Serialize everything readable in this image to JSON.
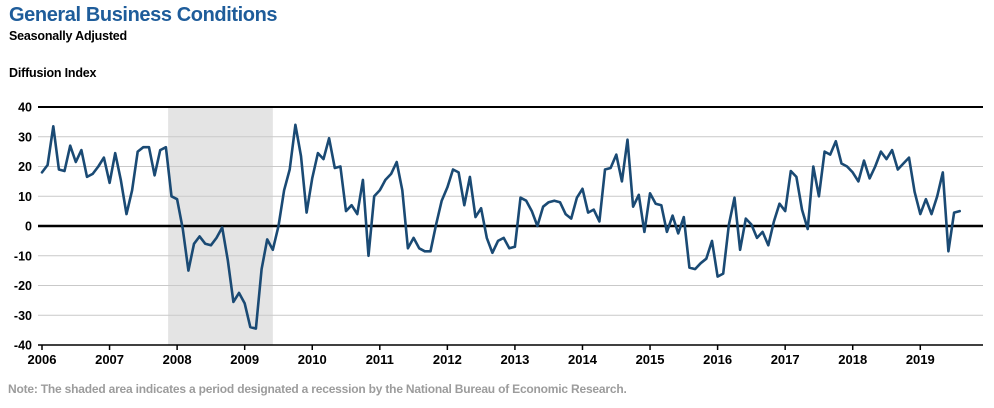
{
  "header": {
    "title": "General Business Conditions",
    "subtitle": "Seasonally Adjusted",
    "axis_title": "Diffusion Index"
  },
  "note": "Note: The shaded area indicates a period designated a recession by the National Bureau of Economic Research.",
  "colors": {
    "title_blue": "#1e5c9a",
    "line_navy": "#1a4a74",
    "recession_band_gray": "#e4e4e4",
    "gridline_gray": "#c9c9c9",
    "axis_black": "#000000",
    "note_gray": "#9c9c9c"
  },
  "chart_data": {
    "type": "line",
    "title": "General Business Conditions",
    "subtitle": "Seasonally Adjusted",
    "ylabel": "Diffusion Index",
    "xlabel": "",
    "ylim": [
      -40,
      40
    ],
    "y_ticks": [
      40,
      30,
      20,
      10,
      0,
      -10,
      -20,
      -30,
      -40
    ],
    "x_tick_labels": [
      "2006",
      "2007",
      "2008",
      "2009",
      "2010",
      "2011",
      "2012",
      "2013",
      "2014",
      "2015",
      "2016",
      "2017",
      "2018",
      "2019"
    ],
    "frequency": "monthly",
    "start_month": "2006-01",
    "end_month": "2019-08",
    "grid": "horizontal gray gridlines every 10 units; bold black line at 0; black border lines at 40 and -40",
    "legend_position": "none",
    "recession_shading": {
      "start": "2007-12",
      "end": "2009-06",
      "label": "NBER recession"
    },
    "series": [
      {
        "name": "General Business Conditions (diffusion index, SA)",
        "values": [
          18,
          20.5,
          33.5,
          19,
          18.5,
          27,
          21.5,
          25.5,
          16.5,
          17.5,
          20,
          23,
          14.5,
          24.5,
          15.5,
          4,
          12,
          25,
          26.5,
          26.5,
          17,
          25.5,
          26.5,
          10,
          9,
          -1,
          -15,
          -6,
          -3.5,
          -6,
          -6.5,
          -4,
          -0.5,
          -11.5,
          -25.5,
          -22.5,
          -26,
          -34,
          -34.5,
          -14.5,
          -4.5,
          -8,
          0,
          12,
          19,
          34,
          23.5,
          4.5,
          16,
          24.5,
          22.5,
          29.5,
          19.5,
          20,
          5,
          7,
          4,
          15.5,
          -10,
          10,
          12,
          15.5,
          17.5,
          21.5,
          12,
          -7.5,
          -4,
          -7.5,
          -8.5,
          -8.5,
          0.5,
          8.5,
          13,
          19,
          18,
          7,
          16.5,
          3,
          6,
          -4,
          -9,
          -5,
          -4,
          -7.5,
          -7,
          9.5,
          8.5,
          5,
          0,
          6.5,
          8,
          8.5,
          8,
          4,
          2.5,
          9.5,
          12.5,
          4.5,
          5.5,
          1.5,
          19,
          19.5,
          24,
          15,
          29,
          6.5,
          10.5,
          -2,
          11,
          7.5,
          7,
          -2,
          3.5,
          -2.5,
          3,
          -14,
          -14.5,
          -12.5,
          -11,
          -5,
          -17,
          -16,
          0.5,
          9.5,
          -8,
          2.5,
          0.5,
          -4,
          -2,
          -6.5,
          1.5,
          7.5,
          5,
          18.5,
          16.5,
          5.5,
          -1,
          20,
          10,
          25,
          24,
          28.5,
          21,
          20,
          18,
          15,
          22,
          16,
          20,
          25,
          22.5,
          25.5,
          19,
          21,
          23,
          11.5,
          4,
          9,
          4,
          10,
          18,
          -8.5,
          4.5,
          5
        ]
      }
    ]
  }
}
